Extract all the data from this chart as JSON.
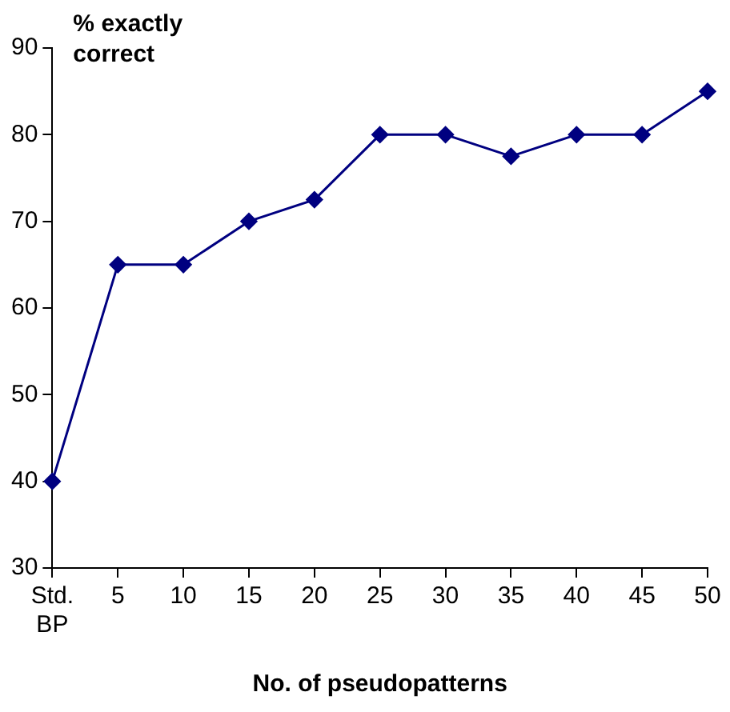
{
  "chart_data": {
    "type": "line",
    "xlabel": "No. of pseudopatterns",
    "ylabel": "% exactly correct",
    "categories": [
      "Std. BP",
      "5",
      "10",
      "15",
      "20",
      "25",
      "30",
      "35",
      "40",
      "45",
      "50"
    ],
    "series": [
      {
        "color": "#000080",
        "values": [
          40,
          65,
          65,
          70,
          72.5,
          80,
          80,
          77.5,
          80,
          80,
          85
        ]
      }
    ],
    "ylim": [
      30,
      90
    ],
    "yticks": [
      30,
      40,
      50,
      60,
      70,
      80,
      90
    ],
    "grid": false,
    "legend": false,
    "marker": "diamond",
    "line_style": "solid"
  }
}
